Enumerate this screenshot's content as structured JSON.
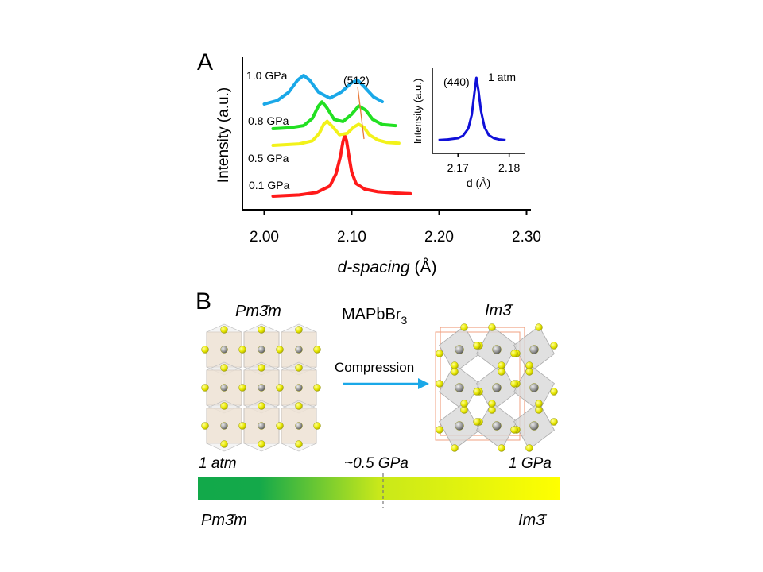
{
  "panel_a": {
    "letter": "A",
    "chart_data": [
      {
        "type": "line",
        "title": "",
        "xlabel": "d-spacing",
        "xlabel_unit": "(Å)",
        "ylabel": "Intensity (a.u.)",
        "xlim": [
          1.975,
          2.305
        ],
        "xticks": [
          "2.00",
          "2.10",
          "2.20",
          "2.30"
        ],
        "y_scale": "arbitrary units, stacked curves",
        "grid": false,
        "legend": "none (curves labeled directly)",
        "annotation": "(512)",
        "series": [
          {
            "name": "0.1 GPa",
            "color": "#ff1a1a",
            "x": [
              2.01,
              2.04,
              2.06,
              2.075,
              2.082,
              2.087,
              2.09,
              2.092,
              2.094,
              2.097,
              2.1,
              2.105,
              2.115,
              2.13,
              2.15,
              2.167
            ],
            "y": [
              0.0,
              0.02,
              0.06,
              0.16,
              0.35,
              0.62,
              0.86,
              0.95,
              0.88,
              0.62,
              0.38,
              0.2,
              0.11,
              0.07,
              0.05,
              0.04
            ]
          },
          {
            "name": "0.5 GPa",
            "color": "#f2f21a",
            "x": [
              2.01,
              2.04,
              2.055,
              2.063,
              2.068,
              2.072,
              2.078,
              2.086,
              2.095,
              2.102,
              2.108,
              2.114,
              2.12,
              2.13,
              2.14,
              2.154
            ],
            "y": [
              0.0,
              0.02,
              0.06,
              0.16,
              0.28,
              0.32,
              0.25,
              0.14,
              0.16,
              0.24,
              0.28,
              0.24,
              0.14,
              0.07,
              0.04,
              0.03
            ]
          },
          {
            "name": "0.8 GPa",
            "color": "#22e022",
            "x": [
              2.01,
              2.03,
              2.045,
              2.055,
              2.062,
              2.066,
              2.071,
              2.08,
              2.09,
              2.1,
              2.108,
              2.116,
              2.124,
              2.135,
              2.15
            ],
            "y": [
              0.0,
              0.01,
              0.03,
              0.1,
              0.22,
              0.26,
              0.21,
              0.09,
              0.07,
              0.14,
              0.22,
              0.18,
              0.09,
              0.04,
              0.03
            ]
          },
          {
            "name": "1.0 GPa",
            "color": "#1aa8e8",
            "x": [
              2.0,
              2.015,
              2.028,
              2.038,
              2.045,
              2.052,
              2.062,
              2.075,
              2.088,
              2.1,
              2.107,
              2.115,
              2.125,
              2.135
            ],
            "y": [
              0.0,
              0.03,
              0.1,
              0.2,
              0.24,
              0.2,
              0.1,
              0.05,
              0.1,
              0.18,
              0.2,
              0.14,
              0.06,
              0.02
            ]
          }
        ]
      },
      {
        "type": "line",
        "title": "",
        "xlabel": "d (Å)",
        "ylabel": "Intensity (a.u.)",
        "xlim": [
          2.165,
          2.183
        ],
        "xticks": [
          "2.17",
          "2.18"
        ],
        "grid": false,
        "annotations": [
          "(440)",
          "1 atm"
        ],
        "series": [
          {
            "name": "1 atm",
            "color": "#1010d8",
            "x": [
              2.1662,
              2.168,
              2.17,
              2.171,
              2.172,
              2.1727,
              2.1732,
              2.1736,
              2.174,
              2.1745,
              2.1752,
              2.176,
              2.177,
              2.178,
              2.1793
            ],
            "y": [
              0.02,
              0.03,
              0.05,
              0.09,
              0.2,
              0.42,
              0.75,
              1.0,
              0.8,
              0.48,
              0.22,
              0.1,
              0.05,
              0.03,
              0.02
            ]
          }
        ]
      }
    ]
  },
  "panel_b": {
    "letter": "B",
    "left_phase": "Pm3̄m",
    "right_phase": "Im3̄",
    "compound_base": "MAPbBr",
    "compound_sub": "3",
    "arrow_label": "Compression",
    "arrow_color": "#1aa8e8",
    "pressure_labels": [
      "1 atm",
      "~0.5 GPa",
      "1 GPa"
    ],
    "bar_left_phase": "Pm3̄m",
    "bar_right_phase": "Im3̄",
    "gradient_colors": [
      "#12a94a",
      "#ffff00"
    ]
  }
}
